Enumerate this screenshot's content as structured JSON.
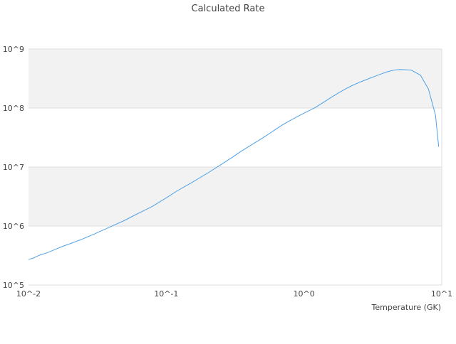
{
  "chart_data": {
    "type": "line",
    "title": "Calculated Rate",
    "xlabel": "Temperature (GK)",
    "ylabel": "",
    "xscale": "log",
    "yscale": "log",
    "xlim": [
      0.01,
      10
    ],
    "ylim": [
      100000,
      1000000000
    ],
    "x_tick_labels": [
      "10^-2",
      "10^-1",
      "10^0",
      "10^1"
    ],
    "y_tick_labels": [
      "10^5",
      "10^6",
      "10^7",
      "10^8",
      "10^9"
    ],
    "grid": "horizontal bands",
    "legend": "none",
    "colors": {
      "line": "#4ea1e6",
      "band": "#f2f2f2",
      "gridline": "#dddddd",
      "axis_text": "#444444"
    },
    "series": [
      {
        "x": [
          0.01,
          0.011,
          0.012,
          0.014,
          0.016,
          0.018,
          0.02,
          0.025,
          0.03,
          0.035,
          0.04,
          0.05,
          0.06,
          0.07,
          0.08,
          0.09,
          0.1,
          0.12,
          0.15,
          0.2,
          0.25,
          0.3,
          0.35,
          0.4,
          0.5,
          0.6,
          0.7,
          0.8,
          0.9,
          1.0,
          1.2,
          1.4,
          1.6,
          1.8,
          2.0,
          2.2,
          2.5,
          3.0,
          3.5,
          4.0,
          4.5,
          5.0,
          6.0,
          7.0,
          8.0,
          9.0,
          9.5
        ],
        "values": [
          270000,
          290000,
          320000,
          360000,
          410000,
          460000,
          500000,
          610000,
          730000,
          860000,
          990000,
          1250000,
          1560000,
          1860000,
          2180000,
          2580000,
          3000000,
          3950000,
          5300000,
          7900000,
          11000000,
          14500000,
          18500000,
          22500000,
          31000000,
          41000000,
          52000000,
          62000000,
          72000000,
          82000000,
          101000000,
          127000000,
          155000000,
          183000000,
          211000000,
          236000000,
          270000000,
          320000000,
          366000000,
          410000000,
          440000000,
          450000000,
          440000000,
          360000000,
          210000000,
          76000000,
          22000000
        ]
      }
    ]
  }
}
